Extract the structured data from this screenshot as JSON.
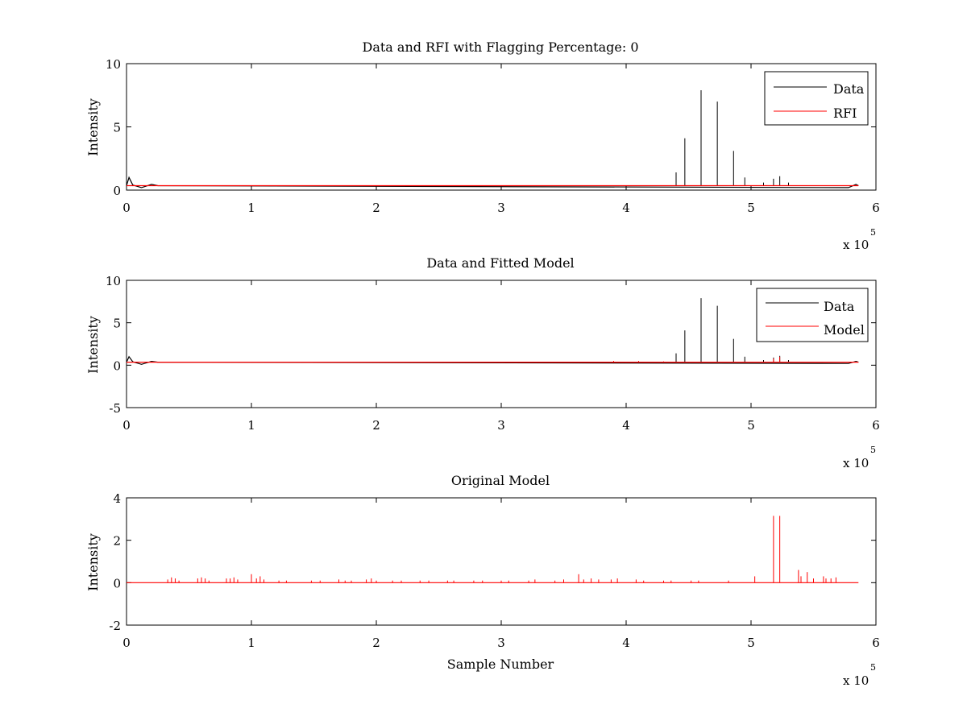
{
  "chart_data": [
    {
      "type": "line",
      "title": "Data and RFI with Flagging Percentage: 0",
      "xlabel": "",
      "ylabel": "Intensity",
      "xlim": [
        0,
        6
      ],
      "ylim": [
        0,
        10
      ],
      "xticks": [
        0,
        1,
        2,
        3,
        4,
        5,
        6
      ],
      "yticks": [
        0,
        5,
        10
      ],
      "x_exponent_base": "x 10",
      "x_exponent_power": "5",
      "legend": {
        "position": "top-right",
        "entries": [
          "Data",
          "RFI"
        ]
      },
      "grid": false,
      "series": [
        {
          "name": "Data",
          "color": "#000000",
          "baseline": 0.35,
          "x_end": 5.86,
          "features": [
            {
              "x": 0.0,
              "y": 0.35
            },
            {
              "x": 0.02,
              "y": 1.0
            },
            {
              "x": 0.05,
              "y": 0.4
            },
            {
              "x": 0.12,
              "y": 0.2
            },
            {
              "x": 0.2,
              "y": 0.45
            },
            {
              "x": 0.25,
              "y": 0.35
            },
            {
              "x": 5.78,
              "y": 0.2
            },
            {
              "x": 5.84,
              "y": 0.45
            },
            {
              "x": 5.86,
              "y": 0.35
            }
          ],
          "spikes": [
            {
              "x": 4.4,
              "y": 1.4
            },
            {
              "x": 4.47,
              "y": 4.1
            },
            {
              "x": 4.6,
              "y": 7.9
            },
            {
              "x": 4.73,
              "y": 7.0
            },
            {
              "x": 4.86,
              "y": 3.1
            },
            {
              "x": 4.95,
              "y": 1.0
            },
            {
              "x": 5.1,
              "y": 0.6
            },
            {
              "x": 5.18,
              "y": 0.9
            },
            {
              "x": 5.23,
              "y": 1.1
            },
            {
              "x": 5.3,
              "y": 0.6
            }
          ]
        },
        {
          "name": "RFI",
          "color": "#ff0000",
          "baseline": 0.35,
          "x_end": 5.86,
          "features": [],
          "spikes": []
        }
      ]
    },
    {
      "type": "line",
      "title": "Data and Fitted Model",
      "xlabel": "",
      "ylabel": "Intensity",
      "xlim": [
        0,
        6
      ],
      "ylim": [
        -5,
        10
      ],
      "xticks": [
        0,
        1,
        2,
        3,
        4,
        5,
        6
      ],
      "yticks": [
        -5,
        0,
        5,
        10
      ],
      "x_exponent_base": "x 10",
      "x_exponent_power": "5",
      "legend": {
        "position": "top-right",
        "entries": [
          "Data",
          "Model"
        ]
      },
      "grid": false,
      "series": [
        {
          "name": "Data",
          "color": "#000000",
          "baseline": 0.35,
          "x_end": 5.86,
          "features": [
            {
              "x": 0.0,
              "y": 0.35
            },
            {
              "x": 0.02,
              "y": 1.0
            },
            {
              "x": 0.05,
              "y": 0.4
            },
            {
              "x": 0.12,
              "y": 0.1
            },
            {
              "x": 0.2,
              "y": 0.45
            },
            {
              "x": 0.25,
              "y": 0.35
            },
            {
              "x": 5.78,
              "y": 0.2
            },
            {
              "x": 5.84,
              "y": 0.45
            },
            {
              "x": 5.86,
              "y": 0.35
            }
          ],
          "spikes": [
            {
              "x": 4.4,
              "y": 1.4
            },
            {
              "x": 4.47,
              "y": 4.1
            },
            {
              "x": 4.6,
              "y": 7.9
            },
            {
              "x": 4.73,
              "y": 7.0
            },
            {
              "x": 4.86,
              "y": 3.1
            },
            {
              "x": 4.95,
              "y": 1.0
            },
            {
              "x": 5.1,
              "y": 0.6
            },
            {
              "x": 5.18,
              "y": 0.9
            },
            {
              "x": 5.23,
              "y": 1.1
            },
            {
              "x": 5.3,
              "y": 0.6
            }
          ]
        },
        {
          "name": "Model",
          "color": "#ff0000",
          "baseline": 0.35,
          "x_end": 5.86,
          "features": [],
          "spikes": [
            {
              "x": 3.9,
              "y": 0.5
            },
            {
              "x": 4.1,
              "y": 0.5
            },
            {
              "x": 4.3,
              "y": 0.45
            },
            {
              "x": 5.18,
              "y": 0.8
            },
            {
              "x": 5.23,
              "y": 1.0
            }
          ]
        }
      ]
    },
    {
      "type": "line",
      "title": "Original Model",
      "xlabel": "Sample Number",
      "ylabel": "Intensity",
      "xlim": [
        0,
        6
      ],
      "ylim": [
        -2,
        4
      ],
      "xticks": [
        0,
        1,
        2,
        3,
        4,
        5,
        6
      ],
      "yticks": [
        -2,
        0,
        2,
        4
      ],
      "x_exponent_base": "x 10",
      "x_exponent_power": "5",
      "grid": false,
      "series": [
        {
          "color": "#ff0000",
          "baseline": 0.0,
          "x_end": 5.86,
          "features": [],
          "spikes": [
            {
              "x": 0.33,
              "y": 0.15
            },
            {
              "x": 0.36,
              "y": 0.25
            },
            {
              "x": 0.39,
              "y": 0.2
            },
            {
              "x": 0.42,
              "y": 0.1
            },
            {
              "x": 0.57,
              "y": 0.2
            },
            {
              "x": 0.6,
              "y": 0.25
            },
            {
              "x": 0.63,
              "y": 0.2
            },
            {
              "x": 0.66,
              "y": 0.1
            },
            {
              "x": 0.8,
              "y": 0.2
            },
            {
              "x": 0.83,
              "y": 0.2
            },
            {
              "x": 0.86,
              "y": 0.25
            },
            {
              "x": 0.89,
              "y": 0.15
            },
            {
              "x": 1.0,
              "y": 0.4
            },
            {
              "x": 1.04,
              "y": 0.2
            },
            {
              "x": 1.07,
              "y": 0.3
            },
            {
              "x": 1.1,
              "y": 0.15
            },
            {
              "x": 1.22,
              "y": 0.1
            },
            {
              "x": 1.28,
              "y": 0.1
            },
            {
              "x": 1.48,
              "y": 0.1
            },
            {
              "x": 1.55,
              "y": 0.1
            },
            {
              "x": 1.7,
              "y": 0.15
            },
            {
              "x": 1.75,
              "y": 0.1
            },
            {
              "x": 1.8,
              "y": 0.1
            },
            {
              "x": 1.92,
              "y": 0.15
            },
            {
              "x": 1.96,
              "y": 0.2
            },
            {
              "x": 2.0,
              "y": 0.1
            },
            {
              "x": 2.13,
              "y": 0.1
            },
            {
              "x": 2.2,
              "y": 0.1
            },
            {
              "x": 2.35,
              "y": 0.1
            },
            {
              "x": 2.42,
              "y": 0.1
            },
            {
              "x": 2.57,
              "y": 0.1
            },
            {
              "x": 2.62,
              "y": 0.1
            },
            {
              "x": 2.78,
              "y": 0.1
            },
            {
              "x": 2.85,
              "y": 0.1
            },
            {
              "x": 3.0,
              "y": 0.1
            },
            {
              "x": 3.06,
              "y": 0.1
            },
            {
              "x": 3.22,
              "y": 0.1
            },
            {
              "x": 3.27,
              "y": 0.15
            },
            {
              "x": 3.43,
              "y": 0.1
            },
            {
              "x": 3.5,
              "y": 0.15
            },
            {
              "x": 3.62,
              "y": 0.4
            },
            {
              "x": 3.66,
              "y": 0.15
            },
            {
              "x": 3.72,
              "y": 0.2
            },
            {
              "x": 3.78,
              "y": 0.15
            },
            {
              "x": 3.88,
              "y": 0.15
            },
            {
              "x": 3.93,
              "y": 0.2
            },
            {
              "x": 4.08,
              "y": 0.15
            },
            {
              "x": 4.14,
              "y": 0.1
            },
            {
              "x": 4.3,
              "y": 0.1
            },
            {
              "x": 4.36,
              "y": 0.1
            },
            {
              "x": 4.52,
              "y": 0.1
            },
            {
              "x": 4.58,
              "y": 0.1
            },
            {
              "x": 4.82,
              "y": 0.1
            },
            {
              "x": 5.03,
              "y": 0.3
            },
            {
              "x": 5.18,
              "y": 3.15
            },
            {
              "x": 5.23,
              "y": 3.15
            },
            {
              "x": 5.38,
              "y": 0.6
            },
            {
              "x": 5.4,
              "y": 0.3
            },
            {
              "x": 5.45,
              "y": 0.5
            },
            {
              "x": 5.5,
              "y": 0.2
            },
            {
              "x": 5.58,
              "y": 0.3
            },
            {
              "x": 5.6,
              "y": 0.2
            },
            {
              "x": 5.64,
              "y": 0.2
            },
            {
              "x": 5.68,
              "y": 0.25
            }
          ]
        }
      ]
    }
  ]
}
